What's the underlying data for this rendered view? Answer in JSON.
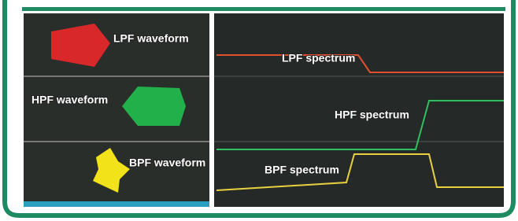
{
  "waveforms": [
    "LPF waveform",
    "HPF waveform",
    "BPF waveform"
  ],
  "spectra": [
    "LPF spectrum",
    "HPF spectrum",
    "BPF spectrum"
  ]
}
